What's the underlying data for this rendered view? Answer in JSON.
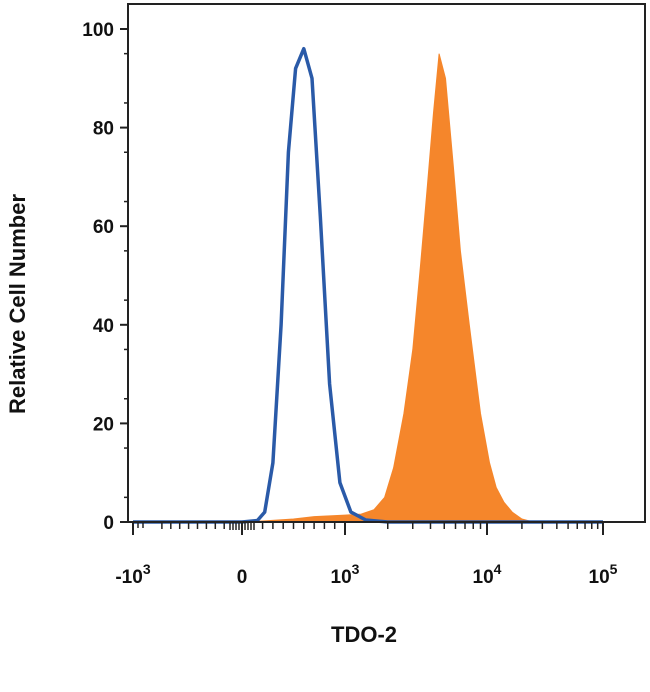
{
  "chart_data": {
    "type": "area",
    "title": "",
    "xlabel": "TDO-2",
    "ylabel": "Relative Cell Number",
    "x_scale": "biexponential",
    "ylim": [
      0,
      100
    ],
    "y_ticks": [
      0,
      20,
      40,
      60,
      80,
      100
    ],
    "y_tick_labels": [
      "0",
      "20",
      "40",
      "60",
      "80",
      "100"
    ],
    "x_ticks": [
      -1000,
      0,
      1000,
      10000,
      100000
    ],
    "x_tick_labels": [
      {
        "base": "-10",
        "exp": "3"
      },
      {
        "base": "0",
        "exp": ""
      },
      {
        "base": "10",
        "exp": "3"
      },
      {
        "base": "10",
        "exp": "4"
      },
      {
        "base": "10",
        "exp": "5"
      }
    ],
    "grid": false,
    "series": [
      {
        "style": "outline",
        "color": "#2a5aa8",
        "x": [
          -1000,
          0,
          150,
          220,
          300,
          380,
          450,
          520,
          600,
          680,
          760,
          850,
          950,
          1100,
          1400,
          2000,
          5000,
          100000
        ],
        "y": [
          0,
          0,
          0.3,
          2,
          12,
          40,
          75,
          92,
          96,
          90,
          62,
          28,
          8,
          2,
          0.4,
          0,
          0,
          0
        ]
      },
      {
        "style": "filled",
        "color": "#f5862b",
        "x": [
          -1000,
          0,
          200,
          500,
          700,
          1000,
          1300,
          1600,
          1900,
          2200,
          2600,
          3000,
          3400,
          3800,
          4200,
          4600,
          5100,
          5800,
          6500,
          7500,
          9000,
          10500,
          12000,
          14000,
          16500,
          20000,
          25000,
          30000,
          100000
        ],
        "y": [
          0,
          0,
          0.2,
          0.6,
          1.1,
          1.4,
          1.6,
          2.5,
          5,
          11,
          22,
          35,
          52,
          68,
          83,
          95,
          90,
          72,
          55,
          40,
          22,
          12,
          7,
          4,
          2,
          0.6,
          0,
          0,
          0
        ]
      }
    ]
  },
  "colors": {
    "axis": "#222222",
    "blue_series": "#2a5aa8",
    "orange_series": "#f5862b"
  }
}
